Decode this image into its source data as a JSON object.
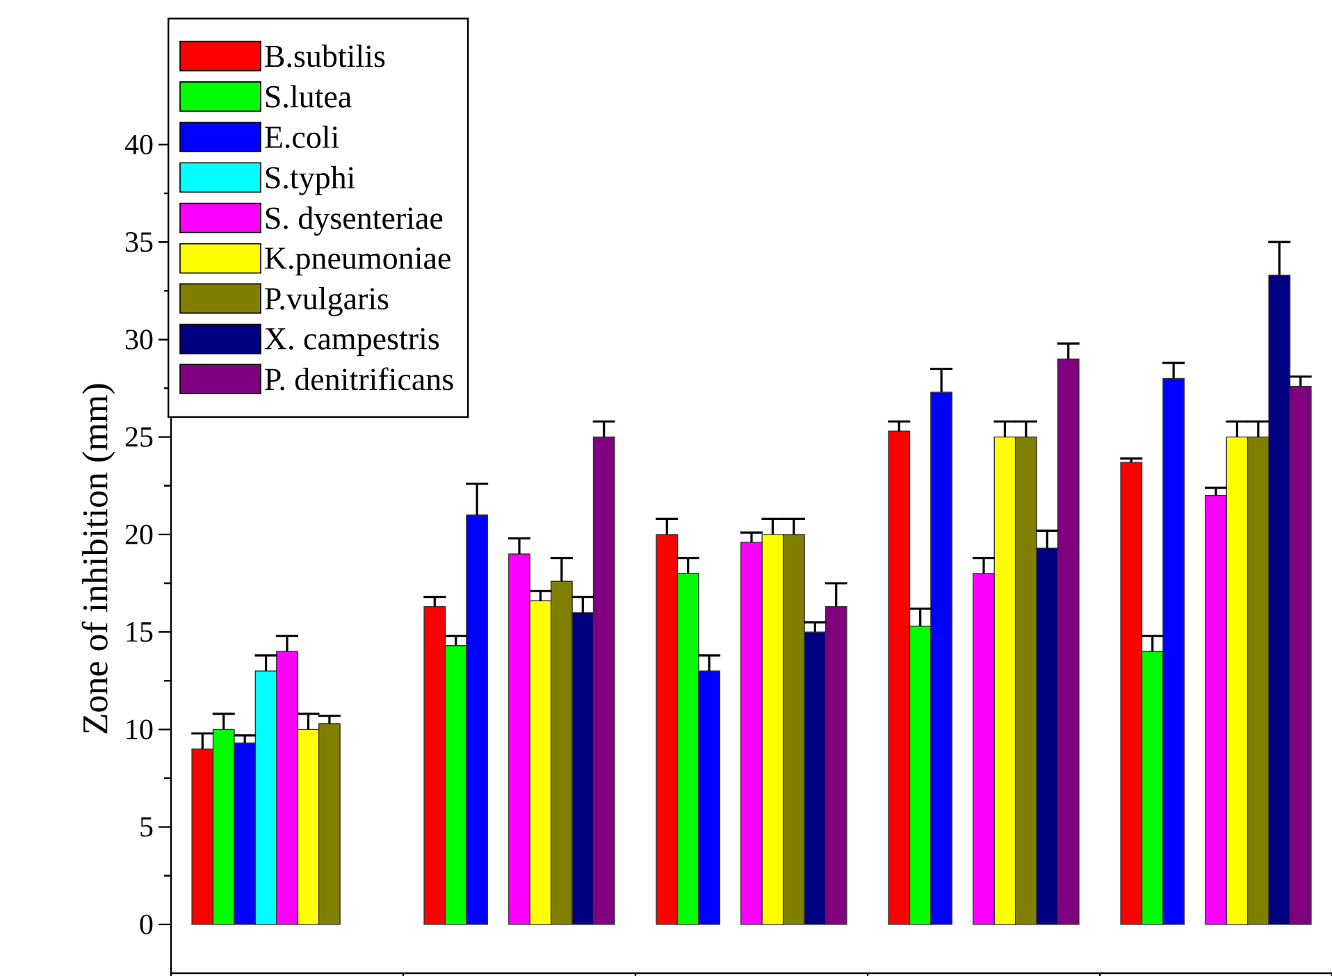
{
  "chart_data": {
    "type": "bar",
    "ylabel": "Zone of inhibition (mm)",
    "categories": [
      null,
      null,
      null,
      null,
      null
    ],
    "ylim": [
      -2.5,
      40
    ],
    "yticks": [
      0,
      5,
      10,
      15,
      20,
      25,
      30,
      35,
      40
    ],
    "legend": "top left",
    "tick_labels": "y",
    "series": [
      {
        "name": "B.subtilis",
        "color": "#ff0000",
        "values": [
          9.0,
          16.3,
          20.0,
          25.3,
          23.7
        ],
        "errors": [
          0.8,
          0.5,
          0.8,
          0.5,
          0.2
        ]
      },
      {
        "name": "S.lutea",
        "color": "#00ff00",
        "values": [
          10.0,
          14.3,
          18.0,
          15.3,
          14.0
        ],
        "errors": [
          0.8,
          0.5,
          0.8,
          0.9,
          0.8
        ]
      },
      {
        "name": "E.coli",
        "color": "#0000ff",
        "values": [
          9.3,
          21.0,
          13.0,
          27.3,
          28.0
        ],
        "errors": [
          0.4,
          1.6,
          0.8,
          1.2,
          0.8
        ]
      },
      {
        "name": "S.typhi",
        "color": "#00ffff",
        "values": [
          13.0,
          0,
          0,
          0,
          0
        ],
        "errors": [
          0.8,
          null,
          null,
          null,
          null
        ]
      },
      {
        "name": "S. dysenteriae",
        "color": "#ff00ff",
        "values": [
          14.0,
          19.0,
          19.6,
          18.0,
          22.0
        ],
        "errors": [
          0.8,
          0.8,
          0.5,
          0.8,
          0.4
        ]
      },
      {
        "name": "K.pneumoniae",
        "color": "#ffff00",
        "values": [
          10.0,
          16.6,
          20.0,
          25.0,
          25.0
        ],
        "errors": [
          0.8,
          0.5,
          0.8,
          0.8,
          0.8
        ]
      },
      {
        "name": "P.vulgaris",
        "color": "#808000",
        "values": [
          10.3,
          17.6,
          20.0,
          25.0,
          25.0
        ],
        "errors": [
          0.4,
          1.2,
          0.8,
          0.8,
          0.8
        ]
      },
      {
        "name": "X. campestris",
        "color": "#000080",
        "values": [
          0,
          16.0,
          15.0,
          19.3,
          33.3
        ],
        "errors": [
          null,
          0.8,
          0.5,
          0.9,
          1.7
        ]
      },
      {
        "name": "P. denitrificans",
        "color": "#800080",
        "values": [
          0,
          25.0,
          16.3,
          29.0,
          27.6
        ],
        "errors": [
          null,
          0.8,
          1.2,
          0.8,
          0.5
        ]
      }
    ]
  }
}
